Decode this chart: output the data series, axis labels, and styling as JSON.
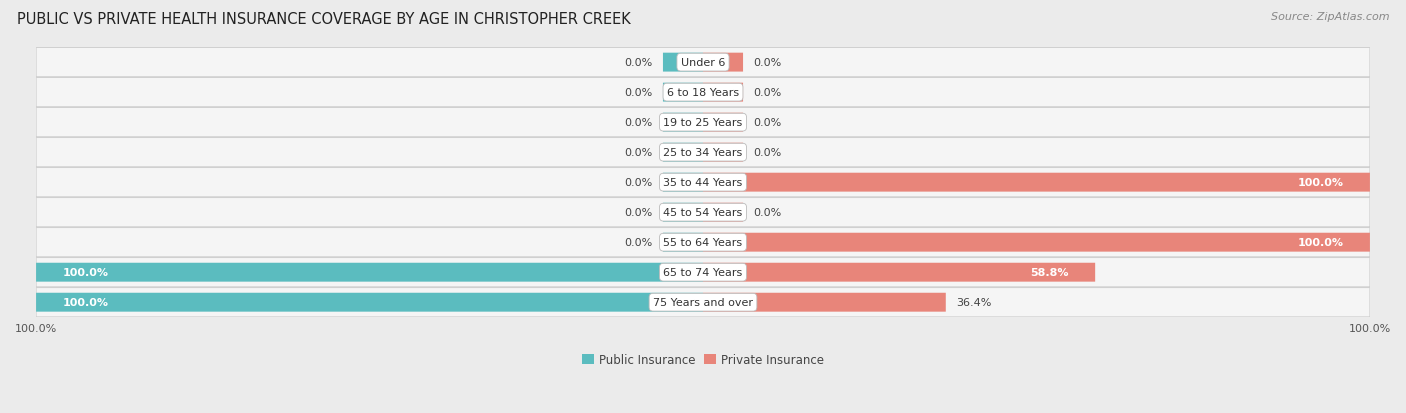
{
  "title": "PUBLIC VS PRIVATE HEALTH INSURANCE COVERAGE BY AGE IN CHRISTOPHER CREEK",
  "source": "Source: ZipAtlas.com",
  "categories": [
    "Under 6",
    "6 to 18 Years",
    "19 to 25 Years",
    "25 to 34 Years",
    "35 to 44 Years",
    "45 to 54 Years",
    "55 to 64 Years",
    "65 to 74 Years",
    "75 Years and over"
  ],
  "public_values": [
    0.0,
    0.0,
    0.0,
    0.0,
    0.0,
    0.0,
    0.0,
    100.0,
    100.0
  ],
  "private_values": [
    0.0,
    0.0,
    0.0,
    0.0,
    100.0,
    0.0,
    100.0,
    58.8,
    36.4
  ],
  "public_color": "#5bbcbf",
  "private_color": "#e8857a",
  "bg_color": "#ebebeb",
  "row_bg_color": "#f5f5f5",
  "title_fontsize": 10.5,
  "source_fontsize": 8,
  "label_fontsize": 8,
  "category_fontsize": 8,
  "legend_fontsize": 8.5,
  "axis_label_fontsize": 8,
  "stub_size": 6.0
}
